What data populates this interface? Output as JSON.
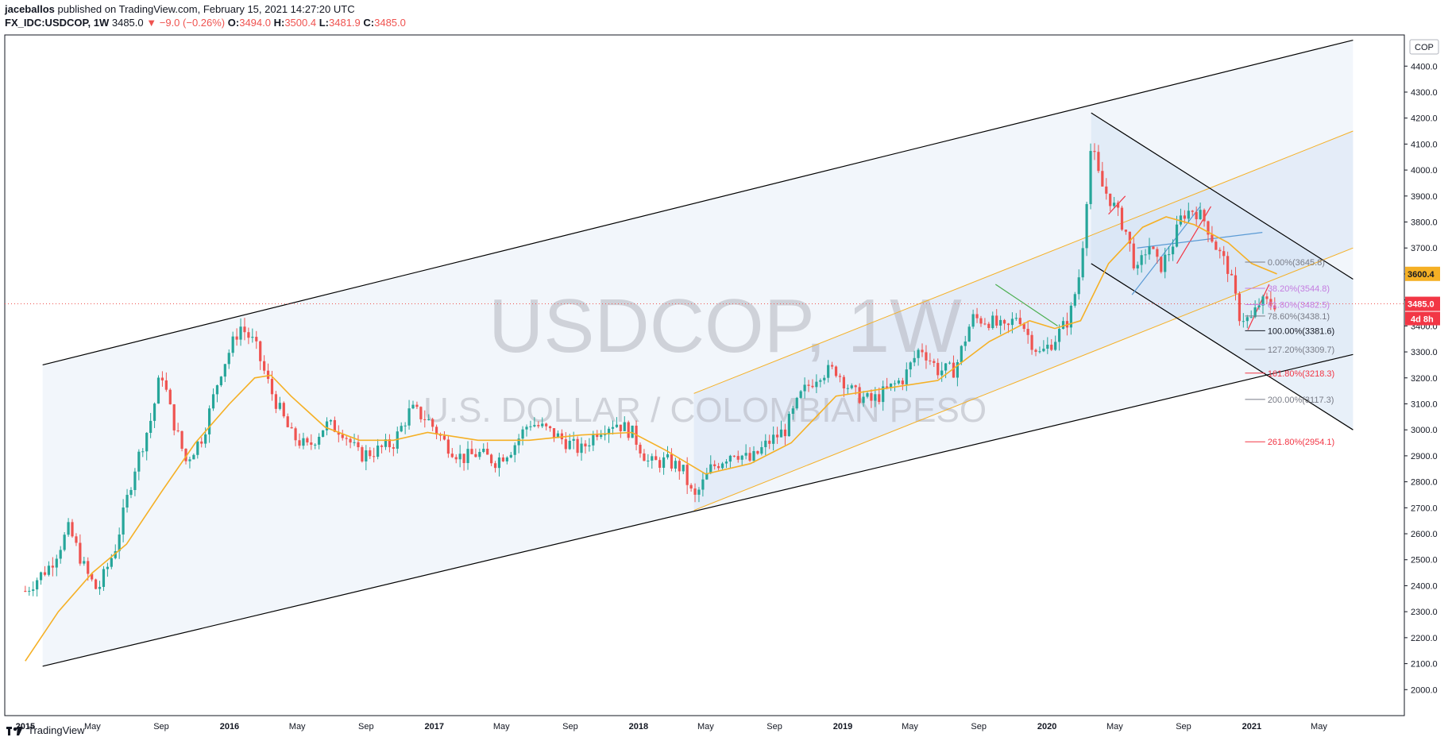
{
  "header": {
    "author": "jaceballos",
    "published": "published on TradingView.com, February 15, 2021 14:27:20 UTC",
    "symbol": "FX_IDC:USDCOP, 1W",
    "last": "3485.0",
    "change": "−9.0 (−0.26%)",
    "o_label": "O:",
    "o": "3494.0",
    "h_label": "H:",
    "h": "3500.4",
    "l_label": "L:",
    "l": "3481.9",
    "c_label": "C:",
    "c": "3485.0"
  },
  "watermark": {
    "main": "USDCOP, 1W",
    "sub": "U.S. DOLLAR / COLOMBIAN PESO"
  },
  "footer": {
    "brand": "TradingView"
  },
  "colors": {
    "up": "#26a69a",
    "down": "#ef5350",
    "ma": "#f5b025",
    "channel": "#000000",
    "fib_gray": "#787b86",
    "fib_red": "#f23645",
    "fib_purple": "#c47ce0"
  },
  "chart_data": {
    "type": "candlestick",
    "currency": "COP",
    "y_range": [
      1900,
      4520
    ],
    "x_ticks": [
      "2015",
      "May",
      "Sep",
      "2016",
      "May",
      "Sep",
      "2017",
      "May",
      "Sep",
      "2018",
      "May",
      "Sep",
      "2019",
      "May",
      "Sep",
      "2020",
      "May",
      "Sep",
      "2021",
      "May"
    ],
    "y_ticks": [
      "2000.0",
      "2100.0",
      "2200.0",
      "2300.0",
      "2400.0",
      "2500.0",
      "2600.0",
      "2700.0",
      "2800.0",
      "2900.0",
      "3000.0",
      "3100.0",
      "3200.0",
      "3300.0",
      "3400.0",
      "3500.0",
      "3600.0",
      "3700.0",
      "3800.0",
      "3900.0",
      "4000.0",
      "4100.0",
      "4200.0",
      "4300.0",
      "4400.0"
    ],
    "price_badges": [
      {
        "label": "3600.4",
        "value": 3600.4,
        "color": "#f5b025"
      },
      {
        "label": "3485.0",
        "value": 3485.0,
        "color": "#f23645"
      }
    ],
    "countdown": "4d 8h",
    "price_path": [
      [
        "2015-01-01",
        2380
      ],
      [
        "2015-02-15",
        2480
      ],
      [
        "2015-03-20",
        2620
      ],
      [
        "2015-04-20",
        2450
      ],
      [
        "2015-05-10",
        2380
      ],
      [
        "2015-06-10",
        2540
      ],
      [
        "2015-07-15",
        2850
      ],
      [
        "2015-08-15",
        3050
      ],
      [
        "2015-09-01",
        3230
      ],
      [
        "2015-09-20",
        3050
      ],
      [
        "2015-10-15",
        2880
      ],
      [
        "2015-11-15",
        2980
      ],
      [
        "2015-12-15",
        3220
      ],
      [
        "2016-01-20",
        3400
      ],
      [
        "2016-02-15",
        3330
      ],
      [
        "2016-03-15",
        3150
      ],
      [
        "2016-04-20",
        2980
      ],
      [
        "2016-05-20",
        2930
      ],
      [
        "2016-06-20",
        3020
      ],
      [
        "2016-07-20",
        3000
      ],
      [
        "2016-08-20",
        2900
      ],
      [
        "2016-09-20",
        2920
      ],
      [
        "2016-10-20",
        2950
      ],
      [
        "2016-11-20",
        3080
      ],
      [
        "2016-12-20",
        3040
      ],
      [
        "2017-01-20",
        2950
      ],
      [
        "2017-02-20",
        2890
      ],
      [
        "2017-03-20",
        2910
      ],
      [
        "2017-04-20",
        2880
      ],
      [
        "2017-05-20",
        2930
      ],
      [
        "2017-06-20",
        3030
      ],
      [
        "2017-07-20",
        3000
      ],
      [
        "2017-08-20",
        2960
      ],
      [
        "2017-09-20",
        2920
      ],
      [
        "2017-10-20",
        3000
      ],
      [
        "2017-11-20",
        3030
      ],
      [
        "2017-12-20",
        2990
      ],
      [
        "2018-01-20",
        2870
      ],
      [
        "2018-02-20",
        2880
      ],
      [
        "2018-03-20",
        2850
      ],
      [
        "2018-04-10",
        2730
      ],
      [
        "2018-05-10",
        2850
      ],
      [
        "2018-06-20",
        2920
      ],
      [
        "2018-07-20",
        2880
      ],
      [
        "2018-08-20",
        2950
      ],
      [
        "2018-09-20",
        3000
      ],
      [
        "2018-10-20",
        3140
      ],
      [
        "2018-11-20",
        3220
      ],
      [
        "2018-12-20",
        3230
      ],
      [
        "2019-01-20",
        3140
      ],
      [
        "2019-02-20",
        3110
      ],
      [
        "2019-03-20",
        3150
      ],
      [
        "2019-04-20",
        3200
      ],
      [
        "2019-05-20",
        3320
      ],
      [
        "2019-06-20",
        3230
      ],
      [
        "2019-07-20",
        3230
      ],
      [
        "2019-08-20",
        3430
      ],
      [
        "2019-09-20",
        3420
      ],
      [
        "2019-10-20",
        3380
      ],
      [
        "2019-11-10",
        3450
      ],
      [
        "2019-12-01",
        3350
      ],
      [
        "2019-12-20",
        3290
      ],
      [
        "2020-01-15",
        3350
      ],
      [
        "2020-02-10",
        3430
      ],
      [
        "2020-03-01",
        3620
      ],
      [
        "2020-03-20",
        4100
      ],
      [
        "2020-04-05",
        3950
      ],
      [
        "2020-04-25",
        3880
      ],
      [
        "2020-05-20",
        3770
      ],
      [
        "2020-06-10",
        3600
      ],
      [
        "2020-06-30",
        3720
      ],
      [
        "2020-07-20",
        3620
      ],
      [
        "2020-08-10",
        3700
      ],
      [
        "2020-08-30",
        3830
      ],
      [
        "2020-09-20",
        3850
      ],
      [
        "2020-10-10",
        3800
      ],
      [
        "2020-10-30",
        3700
      ],
      [
        "2020-11-20",
        3620
      ],
      [
        "2020-12-10",
        3440
      ],
      [
        "2020-12-30",
        3420
      ],
      [
        "2021-01-15",
        3490
      ],
      [
        "2021-02-15",
        3485
      ]
    ],
    "moving_average": [
      [
        "2015-01-01",
        2110
      ],
      [
        "2015-03-01",
        2300
      ],
      [
        "2015-05-01",
        2450
      ],
      [
        "2015-07-01",
        2560
      ],
      [
        "2015-09-01",
        2760
      ],
      [
        "2015-11-01",
        2950
      ],
      [
        "2016-01-01",
        3100
      ],
      [
        "2016-02-15",
        3200
      ],
      [
        "2016-03-15",
        3210
      ],
      [
        "2016-04-20",
        3130
      ],
      [
        "2016-06-20",
        3010
      ],
      [
        "2016-08-20",
        2960
      ],
      [
        "2016-10-20",
        2960
      ],
      [
        "2016-12-20",
        2990
      ],
      [
        "2017-03-20",
        2960
      ],
      [
        "2017-06-20",
        2960
      ],
      [
        "2017-09-20",
        2980
      ],
      [
        "2017-12-20",
        2990
      ],
      [
        "2018-02-20",
        2920
      ],
      [
        "2018-05-01",
        2830
      ],
      [
        "2018-07-20",
        2870
      ],
      [
        "2018-10-01",
        2950
      ],
      [
        "2018-12-20",
        3130
      ],
      [
        "2019-03-20",
        3160
      ],
      [
        "2019-06-20",
        3190
      ],
      [
        "2019-09-20",
        3340
      ],
      [
        "2019-12-01",
        3420
      ],
      [
        "2020-01-15",
        3390
      ],
      [
        "2020-03-01",
        3420
      ],
      [
        "2020-04-20",
        3640
      ],
      [
        "2020-06-20",
        3780
      ],
      [
        "2020-08-01",
        3820
      ],
      [
        "2020-09-20",
        3790
      ],
      [
        "2020-11-20",
        3720
      ],
      [
        "2021-01-01",
        3640
      ],
      [
        "2021-02-15",
        3600
      ]
    ],
    "fibonacci": [
      {
        "level": "0.00%",
        "price": 3645.8,
        "label": "0.00%(3645.8)",
        "color": "#787b86"
      },
      {
        "level": "38.20%",
        "price": 3544.8,
        "label": "38.20%(3544.8)",
        "color": "#c47ce0"
      },
      {
        "level": "61.80%",
        "price": 3482.5,
        "label": "61.80%(3482.5)",
        "color": "#c47ce0"
      },
      {
        "level": "78.60%",
        "price": 3438.1,
        "label": "78.60%(3438.1)",
        "color": "#787b86"
      },
      {
        "level": "100.00%",
        "price": 3381.6,
        "label": "100.00%(3381.6)",
        "color": "#131722"
      },
      {
        "level": "127.20%",
        "price": 3309.7,
        "label": "127.20%(3309.7)",
        "color": "#787b86"
      },
      {
        "level": "161.80%",
        "price": 3218.3,
        "label": "161.80%(3218.3)",
        "color": "#f23645"
      },
      {
        "level": "200.00%",
        "price": 3117.3,
        "label": "200.00%(3117.3)",
        "color": "#787b86"
      },
      {
        "level": "261.80%",
        "price": 2954.1,
        "label": "261.80%(2954.1)",
        "color": "#f23645"
      }
    ],
    "channels": [
      {
        "name": "major-upper",
        "from": [
          "2015-02-01",
          3250
        ],
        "to": [
          "2021-07-01",
          4500
        ],
        "color": "#000000"
      },
      {
        "name": "major-lower",
        "from": [
          "2015-02-01",
          2090
        ],
        "to": [
          "2021-07-01",
          3290
        ],
        "color": "#000000"
      },
      {
        "name": "minor-upper",
        "from": [
          "2018-04-10",
          3140
        ],
        "to": [
          "2021-07-01",
          4150
        ],
        "color": "#f5b025"
      },
      {
        "name": "minor-lower",
        "from": [
          "2018-04-10",
          2690
        ],
        "to": [
          "2021-07-01",
          3700
        ],
        "color": "#f5b025"
      },
      {
        "name": "down-upper",
        "from": [
          "2020-03-20",
          4220
        ],
        "to": [
          "2021-07-01",
          3580
        ],
        "color": "#000000"
      },
      {
        "name": "down-lower",
        "from": [
          "2020-03-20",
          3640
        ],
        "to": [
          "2021-07-01",
          3000
        ],
        "color": "#000000"
      }
    ]
  }
}
